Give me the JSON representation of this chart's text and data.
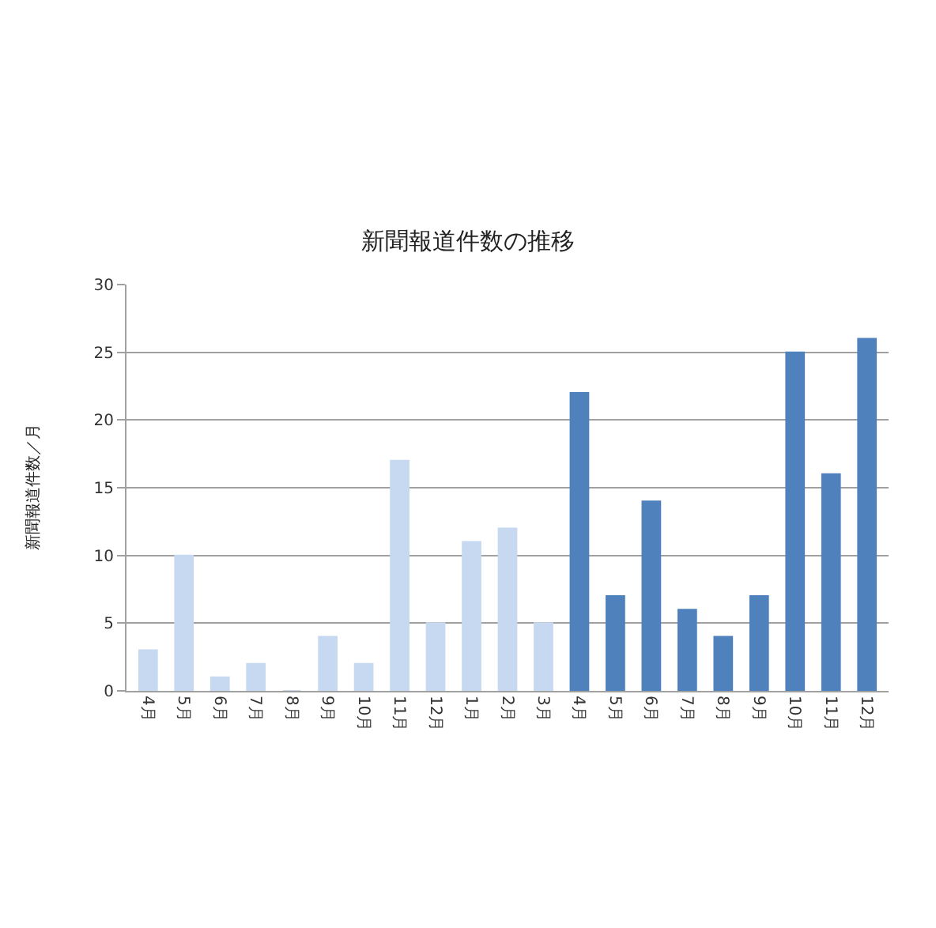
{
  "chart_data": {
    "type": "bar",
    "title": "新聞報道件数の推移",
    "ylabel": "新聞報道件数／月",
    "categories": [
      "4月",
      "5月",
      "6月",
      "7月",
      "8月",
      "9月",
      "10月",
      "11月",
      "12月",
      "1月",
      "2月",
      "3月",
      "4月",
      "5月",
      "6月",
      "7月",
      "8月",
      "9月",
      "10月",
      "11月",
      "12月"
    ],
    "values": [
      3,
      10,
      1,
      2,
      0,
      4,
      2,
      17,
      5,
      11,
      12,
      5,
      22,
      7,
      14,
      6,
      4,
      7,
      25,
      16,
      26
    ],
    "colors": [
      "#c6d9f1",
      "#c6d9f1",
      "#c6d9f1",
      "#c6d9f1",
      "#c6d9f1",
      "#c6d9f1",
      "#c6d9f1",
      "#c6d9f1",
      "#c6d9f1",
      "#c6d9f1",
      "#c6d9f1",
      "#c6d9f1",
      "#4f81bd",
      "#4f81bd",
      "#4f81bd",
      "#4f81bd",
      "#4f81bd",
      "#4f81bd",
      "#4f81bd",
      "#4f81bd",
      "#4f81bd"
    ],
    "ylim": [
      0,
      30
    ],
    "yticks": [
      0,
      5,
      10,
      15,
      20,
      25,
      30
    ],
    "grid": "y"
  }
}
